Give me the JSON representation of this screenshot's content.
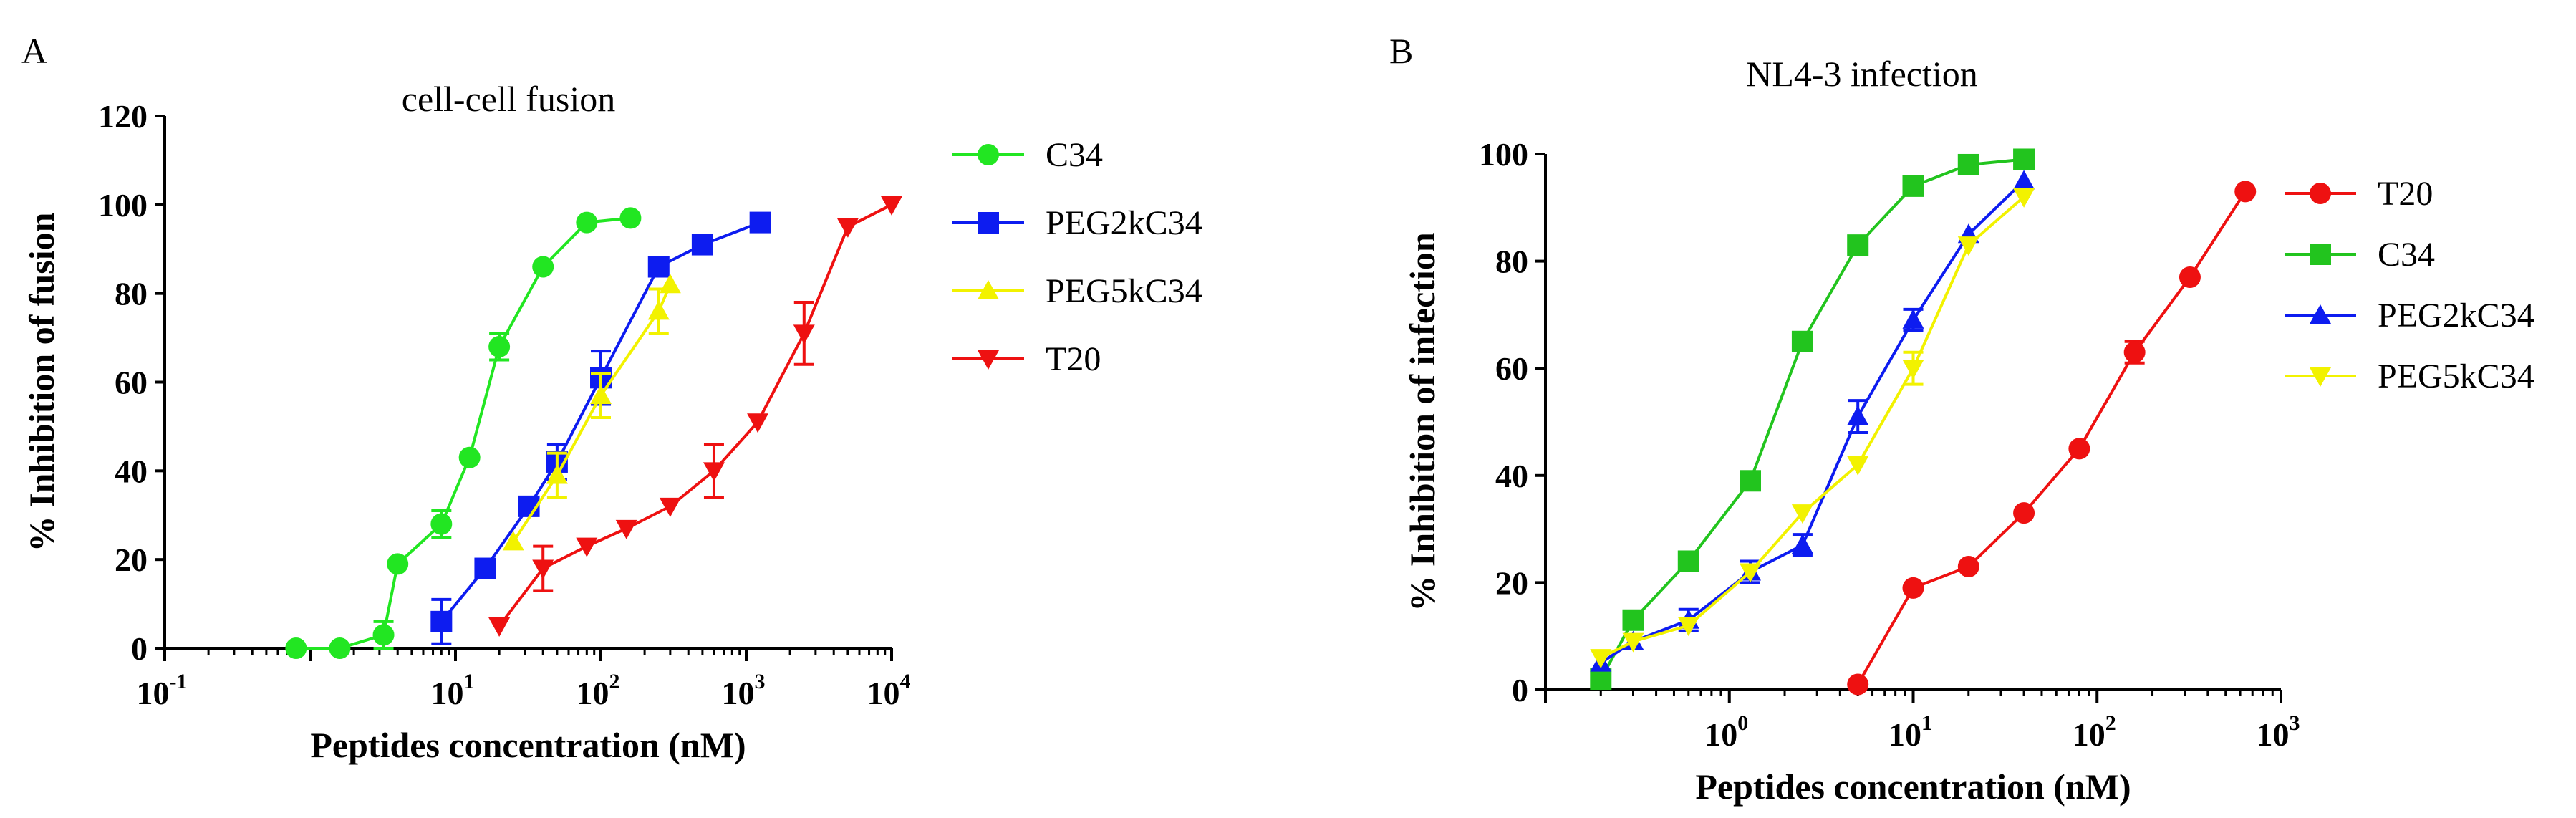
{
  "chart_data": [
    {
      "panel": "A",
      "type": "line",
      "title": "cell-cell fusion",
      "xlabel": "Peptides concentration (nM)",
      "ylabel": "% Inhibition of fusion",
      "xscale": "log",
      "xlim": [
        0.1,
        10000
      ],
      "ylim": [
        0,
        120
      ],
      "xticks": [
        {
          "base": "10",
          "exp": "-1",
          "value": 0.1
        },
        {
          "base": "10",
          "exp": "1",
          "value": 10
        },
        {
          "base": "10",
          "exp": "2",
          "value": 100
        },
        {
          "base": "10",
          "exp": "3",
          "value": 1000
        },
        {
          "base": "10",
          "exp": "4",
          "value": 10000
        }
      ],
      "yticks": [
        0,
        20,
        40,
        60,
        80,
        100,
        120
      ],
      "legend_position": "right",
      "series": [
        {
          "name": "C34",
          "color": "#22e622",
          "marker": "circle",
          "x": [
            0.8,
            1.6,
            3.2,
            4.0,
            8.0,
            12.5,
            20,
            40,
            80,
            160
          ],
          "y": [
            0,
            0,
            3,
            19,
            28,
            43,
            68,
            86,
            96,
            97
          ],
          "err": [
            0,
            0,
            3,
            0,
            3,
            0,
            3,
            0,
            0,
            0
          ]
        },
        {
          "name": "PEG2kC34",
          "color": "#0d1cf0",
          "marker": "square",
          "x": [
            8,
            16,
            32,
            50,
            100,
            250,
            500,
            1250
          ],
          "y": [
            6,
            18,
            32,
            42,
            61,
            86,
            91,
            96
          ],
          "err": [
            5,
            0,
            0,
            4,
            6,
            0,
            0,
            0
          ]
        },
        {
          "name": "PEG5kC34",
          "color": "#f2f200",
          "marker": "triangle-up",
          "x": [
            25,
            50,
            100,
            250,
            300
          ],
          "y": [
            24,
            39,
            57,
            76,
            82
          ],
          "err": [
            0,
            5,
            5,
            5,
            0
          ]
        },
        {
          "name": "T20",
          "color": "#ee1111",
          "marker": "triangle-down",
          "x": [
            20,
            40,
            80,
            150,
            300,
            600,
            1200,
            2500,
            5000,
            10000
          ],
          "y": [
            5,
            18,
            23,
            27,
            32,
            40,
            51,
            71,
            95,
            100
          ],
          "err": [
            0,
            5,
            0,
            0,
            0,
            6,
            0,
            7,
            0,
            0
          ]
        }
      ]
    },
    {
      "panel": "B",
      "type": "line",
      "title": "NL4-3 infection",
      "xlabel": "Peptides concentration (nM)",
      "ylabel": "% Inhibition of infection",
      "xscale": "log",
      "xlim": [
        0.1,
        1000
      ],
      "ylim": [
        0,
        100
      ],
      "xticks": [
        {
          "base": "10",
          "exp": "0",
          "value": 1
        },
        {
          "base": "10",
          "exp": "1",
          "value": 10
        },
        {
          "base": "10",
          "exp": "2",
          "value": 100
        },
        {
          "base": "10",
          "exp": "3",
          "value": 1000
        }
      ],
      "yticks": [
        0,
        20,
        40,
        60,
        80,
        100
      ],
      "legend_position": "right",
      "series": [
        {
          "name": "T20",
          "color": "#ee1111",
          "marker": "circle",
          "x": [
            5,
            10,
            20,
            40,
            80,
            160,
            320,
            640
          ],
          "y": [
            1,
            19,
            23,
            33,
            45,
            63,
            77,
            93
          ],
          "err": [
            0,
            0,
            0,
            0,
            0,
            2,
            0,
            0
          ]
        },
        {
          "name": "C34",
          "color": "#22c41e",
          "marker": "square",
          "x": [
            0.2,
            0.3,
            0.6,
            1.3,
            2.5,
            5,
            10,
            20,
            40
          ],
          "y": [
            2,
            13,
            24,
            39,
            65,
            83,
            94,
            98,
            99
          ],
          "err": [
            0,
            0,
            0,
            0,
            0,
            0,
            0,
            0,
            0
          ]
        },
        {
          "name": "PEG2kC34",
          "color": "#0d1cf0",
          "marker": "triangle-up",
          "x": [
            0.2,
            0.3,
            0.6,
            1.3,
            2.5,
            5,
            10,
            20,
            40
          ],
          "y": [
            5,
            9,
            13,
            22,
            27,
            51,
            69,
            85,
            95
          ],
          "err": [
            0,
            0,
            2,
            2,
            2,
            3,
            2,
            0,
            0
          ]
        },
        {
          "name": "PEG5kC34",
          "color": "#f2f200",
          "marker": "triangle-down",
          "x": [
            0.2,
            0.3,
            0.6,
            1.3,
            2.5,
            5,
            10,
            20,
            40
          ],
          "y": [
            6,
            9,
            12,
            22,
            33,
            42,
            60,
            83,
            92
          ],
          "err": [
            0,
            0,
            0,
            0,
            0,
            0,
            3,
            0,
            0
          ]
        }
      ]
    }
  ]
}
